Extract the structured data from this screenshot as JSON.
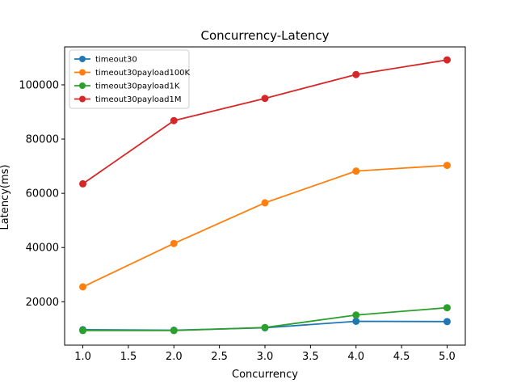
{
  "chart_data": {
    "type": "line",
    "title": "Concurrency-Latency",
    "xlabel": "Concurrency",
    "ylabel": "Latency(ms)",
    "xlim": [
      0.8,
      5.2
    ],
    "ylim": [
      4000,
      114000
    ],
    "xticks": [
      1.0,
      1.5,
      2.0,
      2.5,
      3.0,
      3.5,
      4.0,
      4.5,
      5.0
    ],
    "xtick_labels": [
      "1.0",
      "1.5",
      "2.0",
      "2.5",
      "3.0",
      "3.5",
      "4.0",
      "4.5",
      "5.0"
    ],
    "yticks": [
      20000,
      40000,
      60000,
      80000,
      100000
    ],
    "ytick_labels": [
      "20000",
      "40000",
      "60000",
      "80000",
      "100000"
    ],
    "grid": false,
    "legend_position": "top-left",
    "x": [
      1,
      2,
      3,
      4,
      5
    ],
    "series": [
      {
        "name": "timeout30",
        "color": "#1f77b4",
        "values": [
          9700,
          9500,
          10400,
          12800,
          12700
        ]
      },
      {
        "name": "timeout30payload100K",
        "color": "#ff7f0e",
        "values": [
          25500,
          41500,
          56500,
          68200,
          70300
        ]
      },
      {
        "name": "timeout30payload1K",
        "color": "#2ca02c",
        "values": [
          9400,
          9400,
          10500,
          15100,
          17800
        ]
      },
      {
        "name": "timeout30payload1M",
        "color": "#d62728",
        "values": [
          63500,
          86800,
          95000,
          103800,
          109200
        ]
      }
    ]
  }
}
